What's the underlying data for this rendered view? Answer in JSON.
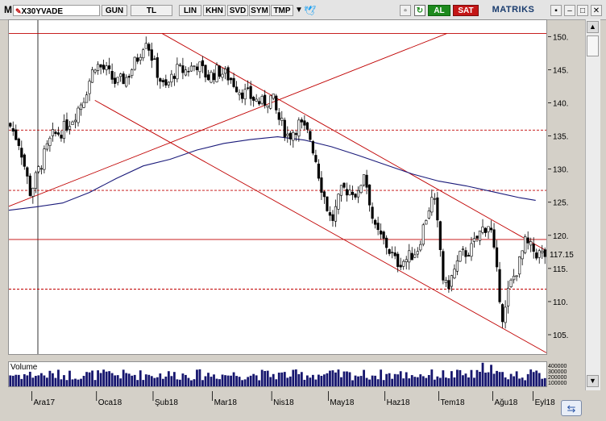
{
  "toolbar": {
    "menu_letter": "M",
    "symbol": "X30YVADE",
    "buttons": [
      "GUN",
      "TL",
      "LIN",
      "KHN",
      "SVD",
      "SYM",
      "TMP"
    ],
    "buy_label": "AL",
    "sell_label": "SAT",
    "brand": "MATRIKS",
    "colors": {
      "buy": "#1d8a1d",
      "sell": "#c41616",
      "bird": "#1da1f2"
    }
  },
  "volume_panel": {
    "title": "Volume",
    "axis_labels": [
      "400000",
      "300000",
      "200000",
      "100000"
    ]
  },
  "last_price": "117.15",
  "icons": [
    "menu-icon",
    "dropdown-arrow-icon",
    "twitter-bird-icon",
    "refresh-icon",
    "window-controls-icon",
    "scroll-up-icon",
    "scroll-down-icon",
    "sync-icon"
  ],
  "chart_data": {
    "type": "candlestick",
    "title": "",
    "y_ticks": [
      150,
      145,
      140,
      135,
      130,
      125,
      120,
      115,
      110,
      105
    ],
    "ylim": [
      102.2,
      152.6
    ],
    "x_ticks": [
      "Ara17",
      "Oca18",
      "Şub18",
      "Mar18",
      "Nis18",
      "May18",
      "Haz18",
      "Tem18",
      "Ağu18",
      "Eyl18"
    ],
    "x_tick_positions": [
      0.05,
      0.17,
      0.275,
      0.385,
      0.495,
      0.6,
      0.705,
      0.805,
      0.905,
      0.98
    ],
    "price_path": [
      [
        0.0,
        137
      ],
      [
        0.02,
        134
      ],
      [
        0.04,
        126.5
      ],
      [
        0.06,
        131
      ],
      [
        0.08,
        135
      ],
      [
        0.1,
        136
      ],
      [
        0.12,
        138
      ],
      [
        0.14,
        141
      ],
      [
        0.16,
        146
      ],
      [
        0.18,
        145
      ],
      [
        0.2,
        143
      ],
      [
        0.22,
        144
      ],
      [
        0.24,
        147
      ],
      [
        0.255,
        150
      ],
      [
        0.27,
        146
      ],
      [
        0.29,
        142
      ],
      [
        0.31,
        145
      ],
      [
        0.33,
        145
      ],
      [
        0.35,
        146
      ],
      [
        0.37,
        144
      ],
      [
        0.39,
        145
      ],
      [
        0.41,
        144
      ],
      [
        0.43,
        142
      ],
      [
        0.45,
        141
      ],
      [
        0.47,
        140
      ],
      [
        0.49,
        141
      ],
      [
        0.5,
        138
      ],
      [
        0.52,
        135
      ],
      [
        0.54,
        137
      ],
      [
        0.56,
        135
      ],
      [
        0.57,
        132
      ],
      [
        0.58,
        128
      ],
      [
        0.6,
        122
      ],
      [
        0.62,
        127
      ],
      [
        0.64,
        127
      ],
      [
        0.65,
        126
      ],
      [
        0.66,
        130
      ],
      [
        0.67,
        126
      ],
      [
        0.68,
        121
      ],
      [
        0.7,
        119
      ],
      [
        0.72,
        116
      ],
      [
        0.74,
        116.5
      ],
      [
        0.76,
        118
      ],
      [
        0.78,
        124
      ],
      [
        0.79,
        126
      ],
      [
        0.8,
        120
      ],
      [
        0.81,
        112
      ],
      [
        0.82,
        113
      ],
      [
        0.84,
        117
      ],
      [
        0.86,
        118
      ],
      [
        0.88,
        121
      ],
      [
        0.895,
        122
      ],
      [
        0.91,
        113
      ],
      [
        0.92,
        107
      ],
      [
        0.93,
        112
      ],
      [
        0.95,
        116
      ],
      [
        0.96,
        119
      ],
      [
        0.98,
        117.5
      ],
      [
        0.995,
        117.15
      ]
    ],
    "moving_average": [
      [
        0.0,
        123.9
      ],
      [
        0.05,
        124.4
      ],
      [
        0.1,
        125
      ],
      [
        0.15,
        126.6
      ],
      [
        0.2,
        128.7
      ],
      [
        0.25,
        130.6
      ],
      [
        0.3,
        131.6
      ],
      [
        0.35,
        133
      ],
      [
        0.4,
        134
      ],
      [
        0.45,
        134.6
      ],
      [
        0.5,
        135
      ],
      [
        0.55,
        134.5
      ],
      [
        0.6,
        133.5
      ],
      [
        0.65,
        132.2
      ],
      [
        0.7,
        130.8
      ],
      [
        0.75,
        129.4
      ],
      [
        0.8,
        128.3
      ],
      [
        0.85,
        127.6
      ],
      [
        0.9,
        126.7
      ],
      [
        0.95,
        125.8
      ],
      [
        0.98,
        125.4
      ]
    ],
    "horizontal_lines": [
      150.6,
      136,
      126.9,
      119.5,
      112
    ],
    "trend_lines": [
      {
        "from": [
          0.0,
          124.5
        ],
        "to": [
          0.815,
          150.6
        ]
      },
      {
        "from": [
          0.285,
          150.6
        ],
        "to": [
          1.0,
          117.8
        ]
      },
      {
        "from": [
          0.16,
          140.5
        ],
        "to": [
          1.0,
          102.4
        ]
      }
    ],
    "volume": {
      "ylim": [
        0,
        450000
      ]
    }
  }
}
